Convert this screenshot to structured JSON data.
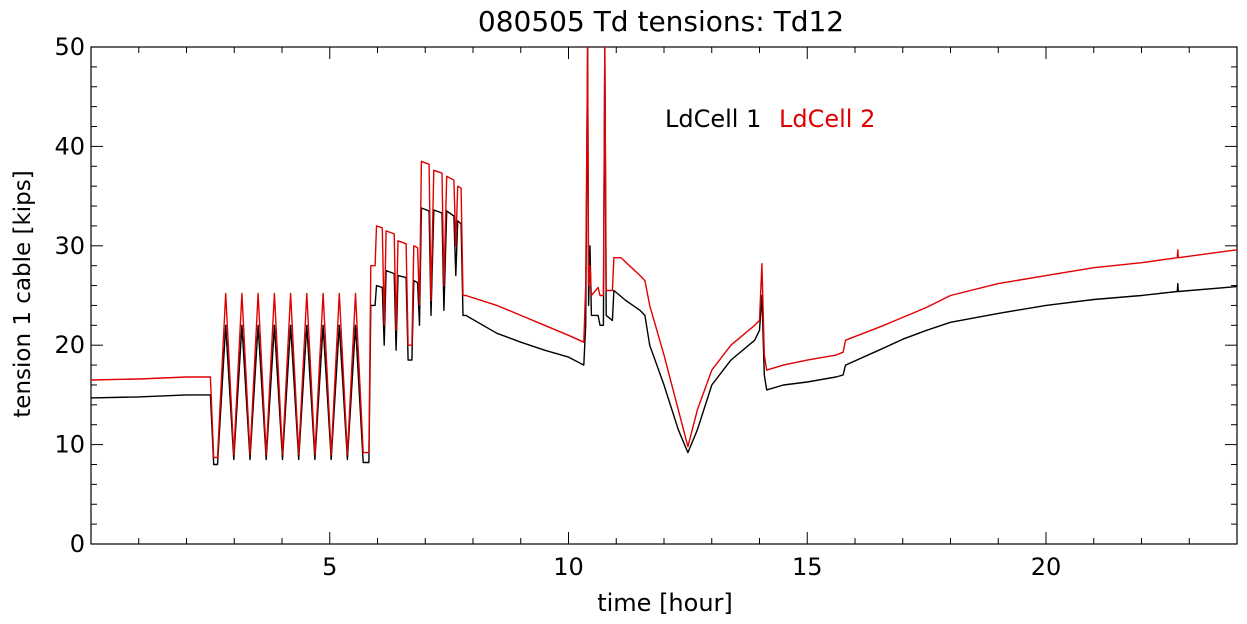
{
  "chart_data": {
    "type": "line",
    "title": "080505 Td tensions: Td12",
    "xlabel": "time [hour]",
    "ylabel": "tension 1 cable [kips]",
    "xlim": [
      0,
      24
    ],
    "ylim": [
      0,
      50
    ],
    "x_ticks": [
      5,
      10,
      15,
      20
    ],
    "y_ticks": [
      0,
      10,
      20,
      30,
      40,
      50
    ],
    "x_tick_labels": [
      "5",
      "10",
      "15",
      "20"
    ],
    "y_tick_labels": [
      "0",
      "10",
      "20",
      "30",
      "40",
      "50"
    ],
    "legend": [
      {
        "label": "LdCell 1",
        "color": "#000000"
      },
      {
        "label": "LdCell 2",
        "color": "#e00000"
      }
    ],
    "legend_position": "top-center",
    "series": [
      {
        "name": "LdCell 1",
        "color": "#000000",
        "points": [
          [
            0,
            14.7
          ],
          [
            1.0,
            14.8
          ],
          [
            2.0,
            15.0
          ],
          [
            2.5,
            15.0
          ],
          [
            2.57,
            8.0
          ],
          [
            2.65,
            8.0
          ],
          [
            2.82,
            22.0
          ],
          [
            2.99,
            8.5
          ],
          [
            3.16,
            22.0
          ],
          [
            3.33,
            8.5
          ],
          [
            3.5,
            22.0
          ],
          [
            3.67,
            8.5
          ],
          [
            3.84,
            22.0
          ],
          [
            4.01,
            8.5
          ],
          [
            4.18,
            22.0
          ],
          [
            4.35,
            8.5
          ],
          [
            4.52,
            22.0
          ],
          [
            4.69,
            8.5
          ],
          [
            4.86,
            22.0
          ],
          [
            5.03,
            8.5
          ],
          [
            5.2,
            22.0
          ],
          [
            5.37,
            8.5
          ],
          [
            5.54,
            22.0
          ],
          [
            5.7,
            8.2
          ],
          [
            5.82,
            8.2
          ],
          [
            5.86,
            24.0
          ],
          [
            5.95,
            24.0
          ],
          [
            5.98,
            26.0
          ],
          [
            6.1,
            25.8
          ],
          [
            6.14,
            20.0
          ],
          [
            6.18,
            27.5
          ],
          [
            6.35,
            27.2
          ],
          [
            6.39,
            19.5
          ],
          [
            6.43,
            27.0
          ],
          [
            6.6,
            26.8
          ],
          [
            6.64,
            18.5
          ],
          [
            6.72,
            18.5
          ],
          [
            6.76,
            26.5
          ],
          [
            6.84,
            26.3
          ],
          [
            6.88,
            22.0
          ],
          [
            6.92,
            33.8
          ],
          [
            7.08,
            33.5
          ],
          [
            7.12,
            23.0
          ],
          [
            7.18,
            33.6
          ],
          [
            7.35,
            33.3
          ],
          [
            7.39,
            23.5
          ],
          [
            7.45,
            33.5
          ],
          [
            7.6,
            33.0
          ],
          [
            7.64,
            27.0
          ],
          [
            7.68,
            32.5
          ],
          [
            7.75,
            32.2
          ],
          [
            7.79,
            23.0
          ],
          [
            7.85,
            23.0
          ],
          [
            8.5,
            21.2
          ],
          [
            9.0,
            20.3
          ],
          [
            9.5,
            19.5
          ],
          [
            10.0,
            18.8
          ],
          [
            10.32,
            18.0
          ],
          [
            10.36,
            22.0
          ],
          [
            10.4,
            50.0
          ],
          [
            10.42,
            24.0
          ],
          [
            10.45,
            30.0
          ],
          [
            10.48,
            23.0
          ],
          [
            10.62,
            23.0
          ],
          [
            10.66,
            22.0
          ],
          [
            10.73,
            22.0
          ],
          [
            10.76,
            50.0
          ],
          [
            10.79,
            23.0
          ],
          [
            10.92,
            22.5
          ],
          [
            10.95,
            25.5
          ],
          [
            11.2,
            24.5
          ],
          [
            11.5,
            23.5
          ],
          [
            11.6,
            23.0
          ],
          [
            11.7,
            20.0
          ],
          [
            12.0,
            16.0
          ],
          [
            12.3,
            11.5
          ],
          [
            12.5,
            9.2
          ],
          [
            12.7,
            11.5
          ],
          [
            13.0,
            16.0
          ],
          [
            13.4,
            18.5
          ],
          [
            13.9,
            20.5
          ],
          [
            14.0,
            21.5
          ],
          [
            14.05,
            25.0
          ],
          [
            14.1,
            17.0
          ],
          [
            14.15,
            15.5
          ],
          [
            14.5,
            16.0
          ],
          [
            15.0,
            16.3
          ],
          [
            15.6,
            16.8
          ],
          [
            15.75,
            17.0
          ],
          [
            15.8,
            18.0
          ],
          [
            16.5,
            19.5
          ],
          [
            17.0,
            20.6
          ],
          [
            17.5,
            21.5
          ],
          [
            18.0,
            22.3
          ],
          [
            19.0,
            23.2
          ],
          [
            20.0,
            24.0
          ],
          [
            21.0,
            24.6
          ],
          [
            22.0,
            25.0
          ],
          [
            22.75,
            25.4
          ],
          [
            22.76,
            26.2
          ],
          [
            22.77,
            25.4
          ],
          [
            24.0,
            25.9
          ]
        ]
      },
      {
        "name": "LdCell 2",
        "color": "#e00000",
        "points": [
          [
            0,
            16.5
          ],
          [
            1.0,
            16.6
          ],
          [
            2.0,
            16.8
          ],
          [
            2.5,
            16.8
          ],
          [
            2.57,
            8.7
          ],
          [
            2.65,
            8.7
          ],
          [
            2.82,
            25.2
          ],
          [
            2.99,
            9.0
          ],
          [
            3.16,
            25.2
          ],
          [
            3.33,
            9.0
          ],
          [
            3.5,
            25.2
          ],
          [
            3.67,
            9.0
          ],
          [
            3.84,
            25.2
          ],
          [
            4.01,
            9.0
          ],
          [
            4.18,
            25.2
          ],
          [
            4.35,
            9.0
          ],
          [
            4.52,
            25.2
          ],
          [
            4.69,
            9.0
          ],
          [
            4.86,
            25.2
          ],
          [
            5.03,
            9.0
          ],
          [
            5.2,
            25.2
          ],
          [
            5.37,
            9.0
          ],
          [
            5.54,
            25.2
          ],
          [
            5.7,
            9.2
          ],
          [
            5.82,
            9.2
          ],
          [
            5.86,
            28.0
          ],
          [
            5.95,
            28.0
          ],
          [
            5.98,
            32.0
          ],
          [
            6.1,
            31.8
          ],
          [
            6.14,
            22.0
          ],
          [
            6.18,
            31.5
          ],
          [
            6.35,
            31.2
          ],
          [
            6.39,
            21.5
          ],
          [
            6.43,
            30.5
          ],
          [
            6.6,
            30.2
          ],
          [
            6.64,
            20.0
          ],
          [
            6.72,
            20.0
          ],
          [
            6.76,
            30.0
          ],
          [
            6.84,
            29.8
          ],
          [
            6.88,
            24.0
          ],
          [
            6.92,
            38.5
          ],
          [
            7.08,
            38.2
          ],
          [
            7.12,
            24.5
          ],
          [
            7.18,
            37.6
          ],
          [
            7.35,
            37.3
          ],
          [
            7.39,
            26.0
          ],
          [
            7.45,
            37.0
          ],
          [
            7.6,
            36.6
          ],
          [
            7.64,
            30.0
          ],
          [
            7.68,
            36.0
          ],
          [
            7.75,
            35.8
          ],
          [
            7.79,
            25.0
          ],
          [
            7.85,
            25.0
          ],
          [
            8.5,
            24.0
          ],
          [
            9.0,
            23.0
          ],
          [
            9.5,
            22.0
          ],
          [
            10.0,
            21.0
          ],
          [
            10.32,
            20.3
          ],
          [
            10.36,
            26.0
          ],
          [
            10.4,
            50.0
          ],
          [
            10.42,
            26.0
          ],
          [
            10.45,
            28.0
          ],
          [
            10.48,
            25.0
          ],
          [
            10.62,
            25.8
          ],
          [
            10.66,
            25.0
          ],
          [
            10.73,
            25.0
          ],
          [
            10.76,
            50.0
          ],
          [
            10.79,
            25.5
          ],
          [
            10.92,
            25.5
          ],
          [
            10.95,
            28.8
          ],
          [
            11.1,
            28.8
          ],
          [
            11.5,
            27.0
          ],
          [
            11.6,
            26.5
          ],
          [
            11.7,
            24.0
          ],
          [
            12.0,
            19.0
          ],
          [
            12.3,
            13.5
          ],
          [
            12.5,
            9.8
          ],
          [
            12.7,
            13.5
          ],
          [
            13.0,
            17.5
          ],
          [
            13.4,
            20.0
          ],
          [
            13.9,
            22.0
          ],
          [
            14.0,
            22.5
          ],
          [
            14.05,
            28.2
          ],
          [
            14.1,
            19.0
          ],
          [
            14.15,
            17.5
          ],
          [
            14.5,
            18.0
          ],
          [
            15.0,
            18.5
          ],
          [
            15.6,
            19.0
          ],
          [
            15.75,
            19.3
          ],
          [
            15.8,
            20.5
          ],
          [
            16.5,
            21.8
          ],
          [
            17.0,
            22.8
          ],
          [
            17.5,
            23.8
          ],
          [
            18.0,
            25.0
          ],
          [
            19.0,
            26.2
          ],
          [
            20.0,
            27.0
          ],
          [
            21.0,
            27.8
          ],
          [
            22.0,
            28.3
          ],
          [
            22.75,
            28.8
          ],
          [
            22.76,
            29.6
          ],
          [
            22.77,
            28.8
          ],
          [
            24.0,
            29.6
          ]
        ]
      }
    ]
  }
}
